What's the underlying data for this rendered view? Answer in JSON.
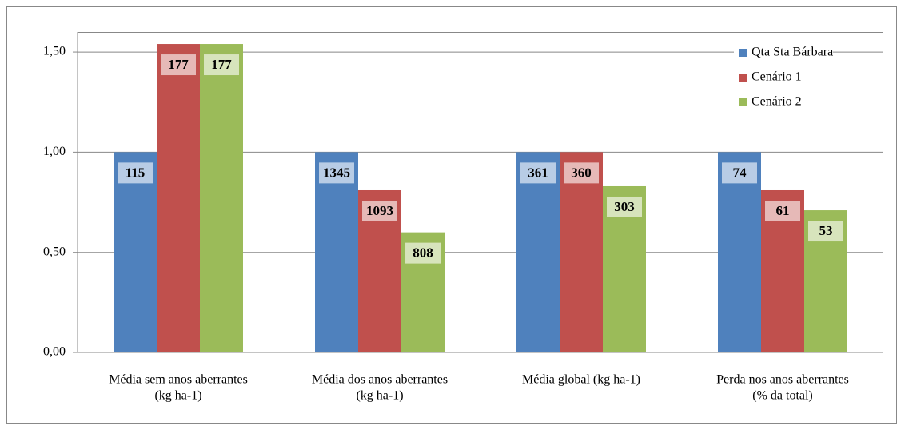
{
  "chart_data": {
    "type": "bar",
    "categories": [
      [
        "Média sem anos aberrantes",
        "(kg ha-1)"
      ],
      [
        "Média dos anos aberrantes",
        "(kg ha-1)"
      ],
      [
        "Média global (kg ha-1)"
      ],
      [
        "Perda nos anos aberrantes",
        "(% da total)"
      ]
    ],
    "series": [
      {
        "name": "Qta Sta Bárbara",
        "color": "#4f81bd",
        "values": [
          1.0,
          1.0,
          1.0,
          1.0
        ],
        "data_labels": [
          115,
          1345,
          361,
          74
        ]
      },
      {
        "name": "Cenário 1",
        "color": "#c0504d",
        "values": [
          1.54,
          0.81,
          1.0,
          0.81
        ],
        "data_labels": [
          177,
          1093,
          360,
          61
        ]
      },
      {
        "name": "Cenário 2",
        "color": "#9bbb59",
        "values": [
          1.54,
          0.6,
          0.83,
          0.71
        ],
        "data_labels": [
          177,
          808,
          303,
          53
        ]
      }
    ],
    "ylim": [
      0,
      1.6
    ],
    "yticks": [
      {
        "value": 0,
        "label": "0,00"
      },
      {
        "value": 0.5,
        "label": "0,50"
      },
      {
        "value": 1,
        "label": "1,00"
      },
      {
        "value": 1.5,
        "label": "1,50"
      }
    ],
    "grid": true,
    "legend": "top-right"
  }
}
